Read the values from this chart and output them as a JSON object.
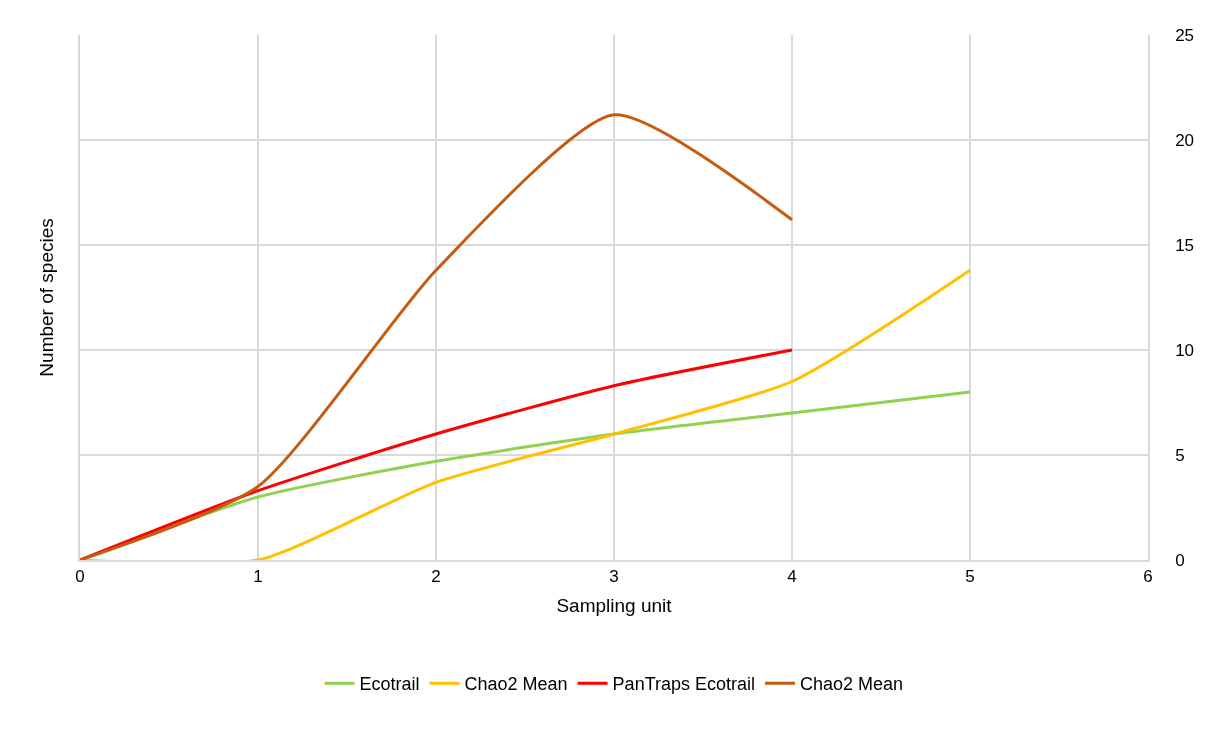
{
  "chart_data": {
    "type": "line",
    "xlabel": "Sampling unit",
    "ylabel": "Number of species",
    "x": [
      0,
      1,
      2,
      3,
      4,
      5
    ],
    "series": [
      {
        "name": "Ecotrail",
        "color": "#92d050",
        "values": [
          0,
          3,
          4.7,
          6,
          7,
          8
        ]
      },
      {
        "name": "Chao2 Mean",
        "color": "#ffc000",
        "values": [
          0,
          0,
          3.7,
          6,
          8.5,
          13.8
        ]
      },
      {
        "name": "PanTraps Ecotrail",
        "color": "#ff0000",
        "values": [
          0,
          3.3,
          6,
          8.3,
          10,
          null
        ]
      },
      {
        "name": "Chao2 Mean",
        "color": "#c55a11",
        "values": [
          0,
          3.5,
          13.8,
          21.2,
          16.2,
          null
        ]
      }
    ],
    "xlim": [
      0,
      6
    ],
    "xticks": [
      0,
      1,
      2,
      3,
      4,
      5,
      6
    ],
    "ylim": [
      0,
      25
    ],
    "yticks": [
      0,
      5,
      10,
      15,
      20,
      25
    ],
    "grid": true,
    "legend": "bottom",
    "marker": "none",
    "line_style": "solid"
  }
}
